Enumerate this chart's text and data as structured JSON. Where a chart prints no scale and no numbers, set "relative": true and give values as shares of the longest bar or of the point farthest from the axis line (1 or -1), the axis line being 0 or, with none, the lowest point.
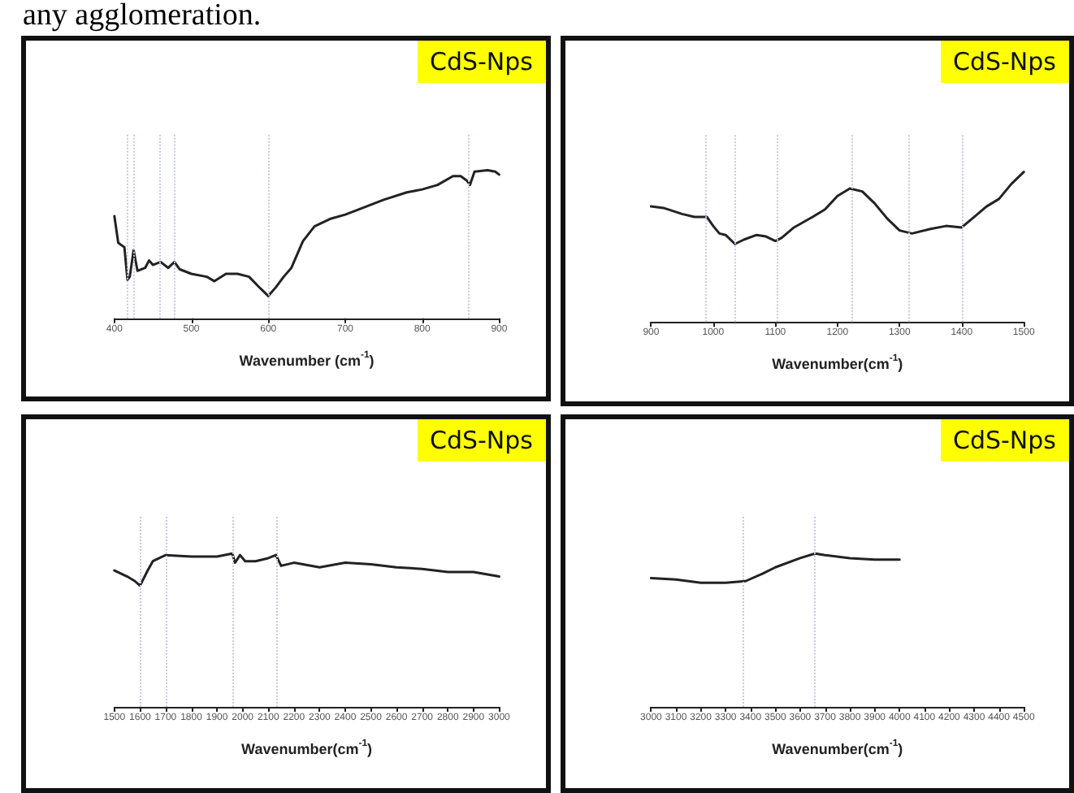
{
  "chart_data": [
    {
      "type": "line",
      "title": "any agglomeration.",
      "xlabel": "Wavenumber (cm$^{-1}$)",
      "annotations": [
        "CdS-Nps"
      ],
      "relative": true,
      "color": "#222222",
      "marker": "none",
      "line_style": "solid",
      "xlim": [
        400,
        900
      ],
      "xticks": [
        400,
        500,
        600,
        700,
        800,
        900
      ],
      "x": [
        400,
        405,
        410,
        413,
        417,
        420,
        425,
        430,
        440,
        445,
        450,
        460,
        470,
        478,
        485,
        500,
        520,
        530,
        545,
        560,
        575,
        590,
        600,
        610,
        620,
        630,
        645,
        660,
        680,
        700,
        720,
        750,
        780,
        800,
        820,
        840,
        850,
        858,
        862,
        868,
        885,
        895,
        900
      ],
      "values": [
        0.69,
        0.51,
        0.49,
        0.48,
        0.26,
        0.28,
        0.46,
        0.32,
        0.34,
        0.39,
        0.36,
        0.38,
        0.34,
        0.38,
        0.33,
        0.3,
        0.28,
        0.25,
        0.3,
        0.3,
        0.28,
        0.2,
        0.15,
        0.21,
        0.28,
        0.34,
        0.52,
        0.62,
        0.67,
        0.7,
        0.74,
        0.8,
        0.85,
        0.87,
        0.9,
        0.96,
        0.96,
        0.93,
        0.9,
        0.99,
        1.0,
        0.99,
        0.97
      ],
      "ref_lines": [
        {
          "axis": "x",
          "value": 417,
          "color": "#c8c8e8",
          "line_style": "dotted"
        },
        {
          "axis": "x",
          "value": 425,
          "color": "#c8c8e8",
          "line_style": "dotted"
        },
        {
          "axis": "x",
          "value": 458,
          "color": "#c8c8e8",
          "line_style": "dotted"
        },
        {
          "axis": "x",
          "value": 478,
          "color": "#c8c8e8",
          "line_style": "dotted"
        },
        {
          "axis": "x",
          "value": 600,
          "color": "#c8c8e8",
          "line_style": "dotted"
        },
        {
          "axis": "x",
          "value": 860,
          "color": "#c8c8e8",
          "line_style": "dotted"
        }
      ]
    },
    {
      "type": "line",
      "xlabel": "Wavenumber(cm$^{-1}$)",
      "annotations": [
        "CdS-Nps"
      ],
      "relative": true,
      "color": "#222222",
      "marker": "none",
      "line_style": "solid",
      "xlim": [
        900,
        1500
      ],
      "xticks": [
        900,
        1000,
        1100,
        1200,
        1300,
        1400,
        1500
      ],
      "x": [
        900,
        920,
        950,
        970,
        990,
        1000,
        1010,
        1020,
        1035,
        1050,
        1070,
        1085,
        1100,
        1110,
        1130,
        1160,
        1180,
        1200,
        1220,
        1240,
        1260,
        1280,
        1300,
        1320,
        1350,
        1375,
        1400,
        1420,
        1440,
        1460,
        1480,
        1500
      ],
      "values": [
        0.77,
        0.76,
        0.72,
        0.7,
        0.7,
        0.64,
        0.59,
        0.58,
        0.52,
        0.55,
        0.58,
        0.57,
        0.54,
        0.56,
        0.63,
        0.7,
        0.75,
        0.84,
        0.89,
        0.87,
        0.79,
        0.69,
        0.61,
        0.59,
        0.62,
        0.64,
        0.63,
        0.7,
        0.77,
        0.82,
        0.92,
        1.0
      ],
      "ref_lines": [
        {
          "axis": "x",
          "value": 987,
          "color": "#c8c8e8",
          "line_style": "dotted"
        },
        {
          "axis": "x",
          "value": 1035,
          "color": "#c8c8e8",
          "line_style": "dotted"
        },
        {
          "axis": "x",
          "value": 1103,
          "color": "#c8c8e8",
          "line_style": "dotted"
        },
        {
          "axis": "x",
          "value": 1222,
          "color": "#c8c8e8",
          "line_style": "dotted"
        },
        {
          "axis": "x",
          "value": 1315,
          "color": "#c8c8e8",
          "line_style": "dotted"
        },
        {
          "axis": "x",
          "value": 1400,
          "color": "#c8c8e8",
          "line_style": "dotted"
        }
      ]
    },
    {
      "type": "line",
      "xlabel": "Wavenumber(cm$^{-1}$)",
      "annotations": [
        "CdS-Nps"
      ],
      "relative": true,
      "color": "#222222",
      "marker": "none",
      "line_style": "solid",
      "xlim": [
        1500,
        3000
      ],
      "xticks": [
        1500,
        1600,
        1700,
        1800,
        1900,
        2000,
        2100,
        2200,
        2300,
        2400,
        2500,
        2600,
        2700,
        2800,
        2900,
        3000
      ],
      "x": [
        1500,
        1550,
        1580,
        1600,
        1630,
        1650,
        1700,
        1800,
        1900,
        1960,
        1970,
        1990,
        2010,
        2050,
        2100,
        2130,
        2150,
        2200,
        2300,
        2400,
        2500,
        2600,
        2700,
        2800,
        2900,
        3000
      ],
      "values": [
        0.89,
        0.85,
        0.82,
        0.79,
        0.89,
        0.95,
        0.99,
        0.98,
        0.98,
        1.0,
        0.94,
        0.99,
        0.95,
        0.95,
        0.97,
        0.99,
        0.92,
        0.94,
        0.91,
        0.94,
        0.93,
        0.91,
        0.9,
        0.88,
        0.88,
        0.85
      ],
      "ref_lines": [
        {
          "axis": "x",
          "value": 1600,
          "color": "#c8c8e8",
          "line_style": "dotted"
        },
        {
          "axis": "x",
          "value": 1700,
          "color": "#c8c8e8",
          "line_style": "dotted"
        },
        {
          "axis": "x",
          "value": 1960,
          "color": "#c8c8e8",
          "line_style": "dotted"
        },
        {
          "axis": "x",
          "value": 2130,
          "color": "#c8c8e8",
          "line_style": "dotted"
        }
      ]
    },
    {
      "type": "line",
      "xlabel": "Wavenumber(cm$^{-1}$)",
      "annotations": [
        "CdS-Nps"
      ],
      "relative": true,
      "color": "#222222",
      "marker": "none",
      "line_style": "solid",
      "xlim": [
        3000,
        4500
      ],
      "xticks": [
        3000,
        3100,
        3200,
        3300,
        3400,
        3500,
        3600,
        3700,
        3800,
        3900,
        4000,
        4100,
        4200,
        4300,
        4400,
        4500
      ],
      "x": [
        3000,
        3100,
        3200,
        3300,
        3380,
        3450,
        3500,
        3600,
        3660,
        3700,
        3800,
        3900,
        4000
      ],
      "values": [
        0.84,
        0.83,
        0.81,
        0.81,
        0.82,
        0.87,
        0.91,
        0.97,
        1.0,
        0.99,
        0.97,
        0.96,
        0.96
      ],
      "ref_lines": [
        {
          "axis": "x",
          "value": 3370,
          "color": "#c8c8e8",
          "line_style": "dotted"
        },
        {
          "axis": "x",
          "value": 3660,
          "color": "#c8c8e8",
          "line_style": "dotted"
        }
      ]
    }
  ]
}
